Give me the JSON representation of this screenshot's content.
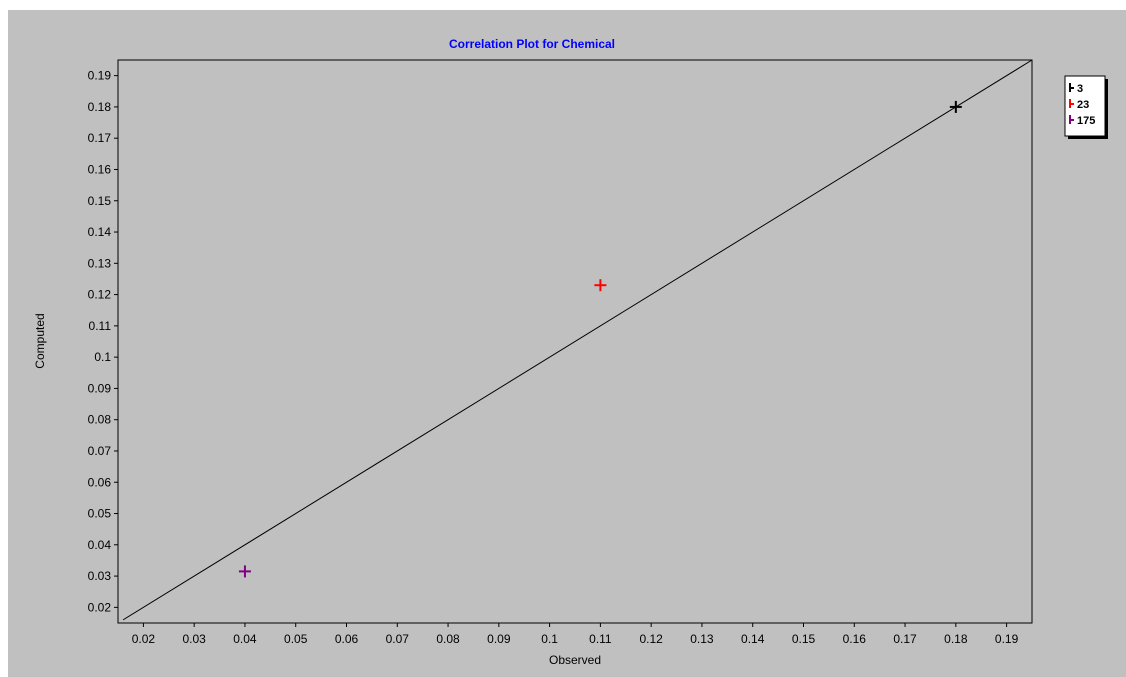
{
  "chart_data": {
    "type": "scatter",
    "title": "Correlation Plot for Chemical",
    "xlabel": "Observed",
    "ylabel": "Computed",
    "xlim": [
      0.015,
      0.195
    ],
    "ylim": [
      0.015,
      0.195
    ],
    "x_ticks": [
      "0.02",
      "0.03",
      "0.04",
      "0.05",
      "0.06",
      "0.07",
      "0.08",
      "0.09",
      "0.1",
      "0.11",
      "0.12",
      "0.13",
      "0.14",
      "0.15",
      "0.16",
      "0.17",
      "0.18",
      "0.19"
    ],
    "y_ticks": [
      "0.02",
      "0.03",
      "0.04",
      "0.05",
      "0.06",
      "0.07",
      "0.08",
      "0.09",
      "0.1",
      "0.11",
      "0.12",
      "0.13",
      "0.14",
      "0.15",
      "0.16",
      "0.17",
      "0.18",
      "0.19"
    ],
    "grid": false,
    "legend_position": "top-right, outside plot",
    "reference_line": {
      "type": "y=x",
      "from": [
        0.016,
        0.016
      ],
      "to": [
        0.195,
        0.195
      ]
    },
    "series": [
      {
        "name": "3",
        "color": "#000000",
        "marker": "plus",
        "points": [
          {
            "x": 0.18,
            "y": 0.18
          }
        ]
      },
      {
        "name": "23",
        "color": "#ff0000",
        "marker": "plus",
        "points": [
          {
            "x": 0.11,
            "y": 0.123
          }
        ]
      },
      {
        "name": "175",
        "color": "#800080",
        "marker": "plus",
        "points": [
          {
            "x": 0.04,
            "y": 0.0315
          }
        ]
      }
    ],
    "title_color": "#0000ff",
    "plot_background": "#c0c0c0"
  }
}
